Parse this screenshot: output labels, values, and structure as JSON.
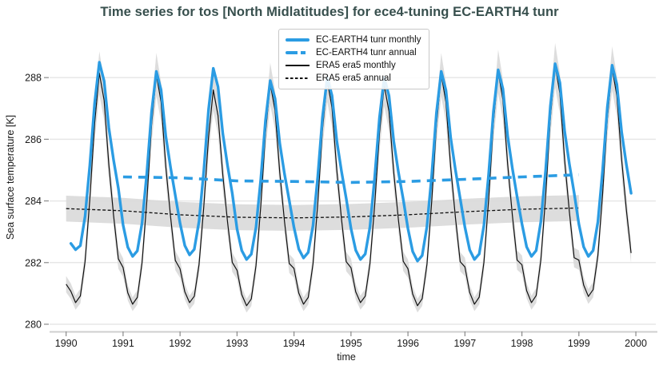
{
  "title": "Time series for tos [North Midlatitudes] for ece4-tuning EC-EARTH4 tunr",
  "colors": {
    "model_line": "#2b9ce3",
    "reference_line": "#111111",
    "uncertainty_band": "#d9d9d9",
    "grid": "#e7e7e7",
    "spine": "#cfcfcf",
    "tick": "#8a8a8a",
    "title_text": "#374f4d"
  },
  "legend": {
    "position": "upper center",
    "items": [
      {
        "label": "EC-EARTH4 tunr monthly",
        "style": "thick-blue-solid"
      },
      {
        "label": "EC-EARTH4 tunr annual",
        "style": "thick-blue-dashed"
      },
      {
        "label": "ERA5 era5 monthly",
        "style": "thin-black-solid"
      },
      {
        "label": "ERA5 era5 annual",
        "style": "thin-black-dashed"
      }
    ]
  },
  "chart_data": {
    "type": "line",
    "xlabel": "time",
    "ylabel": "Sea surface temperature [K]",
    "xticks": [
      1990,
      1991,
      1992,
      1993,
      1994,
      1995,
      1996,
      1997,
      1998,
      1999,
      2000
    ],
    "yticks": [
      280,
      282,
      284,
      286,
      288
    ],
    "xlim": [
      1989.71,
      2000.35
    ],
    "ylim": [
      279.74,
      289.17
    ],
    "grid": "horizontal-only",
    "series": [
      {
        "name": "EC-EARTH4 tunr monthly",
        "color_key": "model_line",
        "style": "solid",
        "linewidth": 3.4,
        "x_start": 1990.0833,
        "x_step_years": 0.08333,
        "values": [
          282.62,
          282.42,
          282.55,
          283.5,
          285.15,
          287.16,
          288.5,
          287.89,
          286.37,
          285.33,
          284.41,
          283.22,
          282.5,
          282.2,
          282.38,
          283.28,
          284.9,
          286.88,
          288.2,
          287.6,
          286.1,
          285.08,
          284.18,
          283.28,
          282.55,
          282.25,
          282.43,
          283.34,
          284.97,
          286.97,
          288.3,
          287.7,
          286.18,
          285.15,
          284.25,
          283.09,
          282.39,
          282.1,
          282.27,
          283.14,
          284.71,
          286.62,
          287.9,
          287.32,
          285.87,
          284.88,
          284.01,
          283.14,
          282.44,
          282.15,
          282.33,
          283.2,
          284.78,
          286.71,
          288.0,
          287.42,
          285.95,
          284.96,
          284.08,
          283.1,
          282.4,
          282.1,
          282.28,
          283.16,
          284.76,
          286.7,
          288.0,
          287.41,
          285.94,
          284.93,
          284.05,
          283.1,
          282.36,
          282.05,
          282.23,
          283.16,
          284.82,
          286.85,
          288.2,
          287.59,
          286.05,
          285.0,
          284.08,
          283.15,
          282.41,
          282.1,
          282.28,
          283.21,
          284.87,
          286.9,
          288.25,
          287.64,
          286.1,
          285.05,
          284.13,
          283.26,
          282.51,
          282.2,
          282.39,
          283.33,
          285.01,
          287.08,
          288.45,
          287.83,
          286.26,
          285.2,
          284.26,
          283.25,
          282.51,
          282.2,
          282.39,
          283.32,
          284.99,
          287.04,
          288.4,
          287.78,
          286.23,
          285.18,
          284.25
        ]
      },
      {
        "name": "EC-EARTH4 tunr annual",
        "color_key": "model_line",
        "style": "dashed",
        "linewidth": 3.6,
        "x": [
          1991,
          1992,
          1993,
          1994,
          1995,
          1996,
          1997,
          1998,
          1999
        ],
        "values": [
          284.78,
          284.75,
          284.65,
          284.63,
          284.6,
          284.63,
          284.7,
          284.78,
          284.85
        ]
      },
      {
        "name": "ERA5 era5 monthly",
        "color_key": "reference_line",
        "style": "solid",
        "linewidth": 1.2,
        "x_start": 1990.0,
        "x_step_years": 0.08333,
        "band_halfwidth_min": 0.22,
        "band_halfwidth_max": 0.72,
        "values": [
          281.3,
          281.07,
          280.7,
          280.92,
          282.04,
          284.05,
          286.51,
          288.15,
          287.26,
          285.17,
          283.53,
          282.12,
          281.84,
          281.02,
          280.65,
          280.87,
          281.99,
          284.0,
          286.46,
          288.1,
          287.21,
          285.12,
          283.48,
          282.07,
          281.8,
          281.05,
          280.7,
          280.91,
          281.94,
          283.81,
          286.08,
          287.6,
          286.77,
          284.84,
          283.32,
          282.01,
          281.75,
          280.96,
          280.6,
          280.82,
          281.9,
          283.84,
          286.22,
          287.8,
          286.94,
          284.92,
          283.34,
          281.97,
          281.81,
          281.01,
          280.65,
          280.87,
          281.96,
          283.91,
          286.31,
          287.9,
          287.03,
          285.0,
          283.41,
          282.03,
          281.83,
          281.05,
          280.7,
          280.91,
          281.97,
          283.87,
          286.2,
          287.75,
          286.9,
          284.93,
          283.38,
          282.04,
          281.8,
          280.98,
          280.6,
          280.83,
          281.95,
          283.98,
          286.45,
          288.1,
          287.2,
          285.1,
          283.45,
          282.03,
          281.86,
          281.03,
          280.65,
          280.88,
          282.01,
          284.05,
          286.54,
          288.2,
          287.29,
          285.18,
          283.52,
          282.08,
          281.93,
          281.09,
          280.7,
          280.93,
          282.09,
          284.17,
          286.71,
          288.4,
          287.48,
          285.32,
          283.63,
          282.16,
          282.08,
          281.27,
          280.9,
          281.12,
          282.23,
          284.23,
          286.67,
          288.3,
          287.41,
          285.34,
          283.71,
          282.31
        ]
      },
      {
        "name": "ERA5 era5 annual",
        "color_key": "reference_line",
        "style": "dashed",
        "linewidth": 1.3,
        "band_halfwidth": 0.42,
        "x": [
          1990,
          1991,
          1992,
          1993,
          1994,
          1995,
          1996,
          1997,
          1998,
          1999
        ],
        "values": [
          283.75,
          283.68,
          283.55,
          283.47,
          283.45,
          283.48,
          283.55,
          283.65,
          283.73,
          283.77
        ]
      }
    ]
  }
}
